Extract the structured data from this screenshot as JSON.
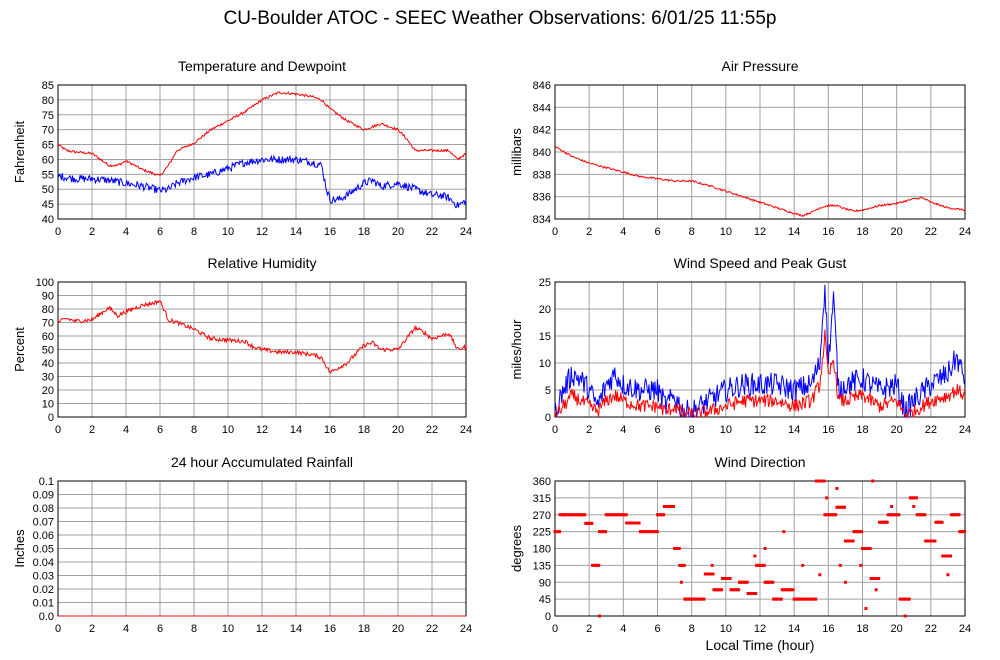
{
  "title": "CU-Boulder ATOC - SEEC Weather Observations: 6/01/25 11:55p",
  "x_axis_label": "Local Time (hour)",
  "colors": {
    "primary": "#ff0000",
    "secondary": "#0000ff",
    "grid": "#a0a0a0"
  },
  "chart_data": [
    {
      "type": "line",
      "title": "Temperature and Dewpoint",
      "ylabel": "Fahrenheit",
      "xlabel": "",
      "xlim": [
        0,
        24
      ],
      "ylim": [
        40,
        85
      ],
      "xticks": [
        0,
        2,
        4,
        6,
        8,
        10,
        12,
        14,
        16,
        18,
        20,
        22,
        24
      ],
      "yticks": [
        40,
        45,
        50,
        55,
        60,
        65,
        70,
        75,
        80,
        85
      ],
      "grid": true,
      "series": [
        {
          "color": "#ff0000",
          "jitter": 0.4,
          "x": [
            0,
            0.5,
            1,
            2,
            2.5,
            3,
            3.5,
            4,
            5,
            6,
            6.5,
            7,
            8,
            9,
            10,
            11,
            12,
            13,
            14,
            15,
            15.5,
            16,
            17,
            18,
            18.5,
            19,
            20,
            20.5,
            21,
            22,
            23,
            23.5,
            24
          ],
          "y": [
            65,
            63,
            62.5,
            62,
            60,
            58,
            58,
            59.5,
            56.5,
            54.5,
            58,
            63,
            65.5,
            70,
            73,
            76,
            80,
            82.5,
            82,
            81,
            80,
            77,
            73,
            70,
            71,
            72,
            70,
            67,
            63,
            63,
            63,
            60,
            62
          ]
        },
        {
          "color": "#0000ff",
          "jitter": 1.3,
          "x": [
            0,
            1,
            2,
            3,
            4,
            5,
            6,
            6.5,
            7,
            8,
            9,
            10,
            11,
            12,
            13,
            14,
            15,
            15.5,
            15.8,
            16,
            16.5,
            17,
            18,
            18.5,
            19,
            20,
            21,
            22,
            22.5,
            23,
            23.5,
            24
          ],
          "y": [
            54.5,
            53.5,
            53.5,
            53,
            52,
            51,
            49.5,
            50,
            52,
            54,
            55,
            57,
            59,
            60,
            60,
            60,
            59,
            58,
            50,
            46.5,
            46.5,
            48,
            52,
            53,
            51,
            52,
            50,
            48,
            48,
            47,
            44.5,
            46
          ]
        }
      ]
    },
    {
      "type": "line",
      "title": "Air Pressure",
      "ylabel": "millibars",
      "xlabel": "",
      "xlim": [
        0,
        24
      ],
      "ylim": [
        834,
        846
      ],
      "xticks": [
        0,
        2,
        4,
        6,
        8,
        10,
        12,
        14,
        16,
        18,
        20,
        22,
        24
      ],
      "yticks": [
        834,
        836,
        838,
        840,
        842,
        844,
        846
      ],
      "grid": true,
      "series": [
        {
          "color": "#ff0000",
          "jitter": 0.08,
          "x": [
            0,
            1,
            2,
            3,
            4,
            5,
            6,
            7,
            8,
            9,
            10,
            11,
            12,
            13,
            14,
            14.5,
            15,
            15.5,
            16,
            16.5,
            17,
            17.5,
            18,
            19,
            20,
            21,
            21.5,
            22,
            23,
            24
          ],
          "y": [
            840.5,
            839.6,
            839,
            838.6,
            838.2,
            837.8,
            837.6,
            837.4,
            837.4,
            837,
            836.5,
            836,
            835.5,
            835,
            834.5,
            834.3,
            834.6,
            835,
            835.2,
            835.2,
            834.9,
            834.7,
            834.8,
            835.2,
            835.4,
            835.8,
            835.9,
            835.5,
            835,
            834.8
          ]
        }
      ]
    },
    {
      "type": "line",
      "title": "Relative Humidity",
      "ylabel": "Percent",
      "xlabel": "",
      "xlim": [
        0,
        24
      ],
      "ylim": [
        0,
        100
      ],
      "xticks": [
        0,
        2,
        4,
        6,
        8,
        10,
        12,
        14,
        16,
        18,
        20,
        22,
        24
      ],
      "yticks": [
        0,
        10,
        20,
        30,
        40,
        50,
        60,
        70,
        80,
        90,
        100
      ],
      "grid": true,
      "series": [
        {
          "color": "#ff0000",
          "jitter": 1.5,
          "x": [
            0,
            0.5,
            1,
            2,
            3,
            3.5,
            4,
            5,
            5.5,
            6,
            6.5,
            7,
            8,
            9,
            10,
            11,
            11.5,
            12,
            13,
            14,
            15,
            15.5,
            16,
            17,
            18,
            18.5,
            19,
            20,
            21,
            21.5,
            22,
            23,
            23.5,
            24
          ],
          "y": [
            70,
            73,
            71,
            72,
            81,
            75,
            78,
            83,
            84,
            86,
            72,
            70,
            65,
            58,
            57,
            56,
            52,
            50,
            48,
            48,
            46,
            44,
            33,
            40,
            53,
            55,
            50,
            50,
            66,
            63,
            58,
            62,
            50,
            52
          ]
        }
      ]
    },
    {
      "type": "line",
      "title": "Wind Speed and Peak Gust",
      "ylabel": "miles/hour",
      "xlabel": "",
      "xlim": [
        0,
        24
      ],
      "ylim": [
        0,
        25
      ],
      "xticks": [
        0,
        2,
        4,
        6,
        8,
        10,
        12,
        14,
        16,
        18,
        20,
        22,
        24
      ],
      "yticks": [
        0,
        5,
        10,
        15,
        20,
        25
      ],
      "grid": true,
      "series": [
        {
          "color": "#0000ff",
          "jitter": 2.2,
          "x": [
            0,
            0.5,
            1,
            1.5,
            2,
            2.5,
            3,
            3.5,
            4,
            5,
            6,
            6.5,
            7,
            7.5,
            8,
            9,
            10,
            11,
            12,
            13,
            14,
            15,
            15.5,
            15.8,
            16,
            16.3,
            16.6,
            17,
            18,
            19,
            20,
            20.5,
            21,
            22,
            23,
            23.5,
            24
          ],
          "y": [
            1,
            5,
            8,
            7,
            5,
            2,
            6,
            8,
            6,
            5,
            5,
            2,
            4,
            1,
            1,
            3,
            5,
            6,
            6,
            6,
            5,
            6,
            10,
            25,
            10,
            22,
            5,
            6,
            7,
            5,
            6,
            1,
            3,
            6,
            8,
            11,
            7
          ]
        },
        {
          "color": "#ff0000",
          "jitter": 1.3,
          "x": [
            0,
            0.5,
            1,
            1.5,
            2,
            2.5,
            3,
            3.5,
            4,
            5,
            6,
            6.5,
            7,
            7.5,
            8,
            9,
            10,
            11,
            12,
            13,
            14,
            15,
            15.5,
            15.8,
            16,
            16.3,
            16.6,
            17,
            18,
            19,
            20,
            20.5,
            21,
            22,
            23,
            23.5,
            24
          ],
          "y": [
            0,
            2,
            4,
            3,
            2,
            1,
            3,
            4,
            3,
            2,
            2,
            1,
            2,
            0.5,
            0.5,
            1,
            2,
            3,
            3,
            3,
            2,
            3,
            6,
            15,
            7,
            11,
            3,
            3,
            4,
            2,
            3,
            0.5,
            1,
            3,
            4,
            5,
            4
          ]
        }
      ]
    },
    {
      "type": "line",
      "title": "24 hour Accumulated Rainfall",
      "ylabel": "Inches",
      "xlabel": "",
      "xlim": [
        0,
        24
      ],
      "ylim": [
        0,
        0.1
      ],
      "xticks": [
        0,
        2,
        4,
        6,
        8,
        10,
        12,
        14,
        16,
        18,
        20,
        22,
        24
      ],
      "yticks": [
        0,
        0.01,
        0.02,
        0.03,
        0.04,
        0.05,
        0.06,
        0.07,
        0.08,
        0.09,
        0.1
      ],
      "ytick_labels": [
        "0.0",
        "0.01",
        "0.02",
        "0.03",
        "0.04",
        "0.05",
        "0.06",
        "0.07",
        "0.08",
        "0.09",
        "0.1"
      ],
      "grid": true,
      "series": [
        {
          "color": "#ff0000",
          "jitter": 0,
          "x": [
            0,
            24
          ],
          "y": [
            0,
            0
          ]
        }
      ]
    },
    {
      "type": "scatter",
      "title": "Wind Direction",
      "ylabel": "degrees",
      "xlabel": "Local Time (hour)",
      "xlim": [
        0,
        24
      ],
      "ylim": [
        0,
        360
      ],
      "xticks": [
        0,
        2,
        4,
        6,
        8,
        10,
        12,
        14,
        16,
        18,
        20,
        22,
        24
      ],
      "yticks": [
        0,
        45,
        90,
        135,
        180,
        225,
        270,
        315,
        360
      ],
      "grid": true,
      "series": [
        {
          "color": "#ff0000",
          "runs": [
            [
              0,
              0.3,
              225
            ],
            [
              0.3,
              1.8,
              270
            ],
            [
              1.8,
              2.2,
              247
            ],
            [
              2.2,
              2.6,
              135
            ],
            [
              2.6,
              3,
              225
            ],
            [
              3,
              4.2,
              270
            ],
            [
              4.2,
              5,
              248
            ],
            [
              5,
              6,
              225
            ],
            [
              6,
              6.4,
              270
            ],
            [
              6.4,
              7,
              292
            ],
            [
              7,
              7.3,
              180
            ],
            [
              7.3,
              7.6,
              135
            ],
            [
              7.6,
              8,
              45
            ],
            [
              8,
              8.8,
              45
            ],
            [
              8.8,
              9.3,
              112
            ],
            [
              9.3,
              9.8,
              70
            ],
            [
              9.8,
              10.3,
              100
            ],
            [
              10.3,
              10.8,
              70
            ],
            [
              10.8,
              11.3,
              90
            ],
            [
              11.3,
              11.8,
              60
            ],
            [
              11.8,
              12.3,
              135
            ],
            [
              12.3,
              12.8,
              90
            ],
            [
              12.8,
              13.3,
              45
            ],
            [
              13.3,
              14,
              70
            ],
            [
              14,
              15.3,
              45
            ],
            [
              15.3,
              15.8,
              360
            ],
            [
              15.8,
              16.5,
              270
            ],
            [
              16.5,
              17,
              290
            ],
            [
              17,
              17.5,
              200
            ],
            [
              17.5,
              18,
              225
            ],
            [
              18,
              18.5,
              180
            ],
            [
              18.5,
              19,
              100
            ],
            [
              19,
              19.5,
              250
            ],
            [
              19.5,
              20.2,
              270
            ],
            [
              20.2,
              20.8,
              45
            ],
            [
              20.8,
              21.2,
              315
            ],
            [
              21.2,
              21.7,
              270
            ],
            [
              21.7,
              22.3,
              200
            ],
            [
              22.3,
              22.7,
              250
            ],
            [
              22.7,
              23.2,
              160
            ],
            [
              23.2,
              23.7,
              270
            ],
            [
              23.7,
              24,
              225
            ]
          ],
          "isolated": [
            [
              2.6,
              0
            ],
            [
              0.5,
              270
            ],
            [
              6.5,
              292
            ],
            [
              7.4,
              90
            ],
            [
              9.2,
              135
            ],
            [
              11.7,
              160
            ],
            [
              12.3,
              180
            ],
            [
              13.4,
              225
            ],
            [
              14.5,
              135
            ],
            [
              15.5,
              110
            ],
            [
              15.9,
              315
            ],
            [
              16.5,
              340
            ],
            [
              16.7,
              135
            ],
            [
              17,
              90
            ],
            [
              17.7,
              225
            ],
            [
              17.9,
              135
            ],
            [
              18.2,
              20
            ],
            [
              18.6,
              360
            ],
            [
              19.7,
              292
            ],
            [
              20.5,
              0
            ],
            [
              21,
              292
            ],
            [
              23,
              110
            ],
            [
              18.8,
              70
            ]
          ]
        }
      ]
    }
  ]
}
